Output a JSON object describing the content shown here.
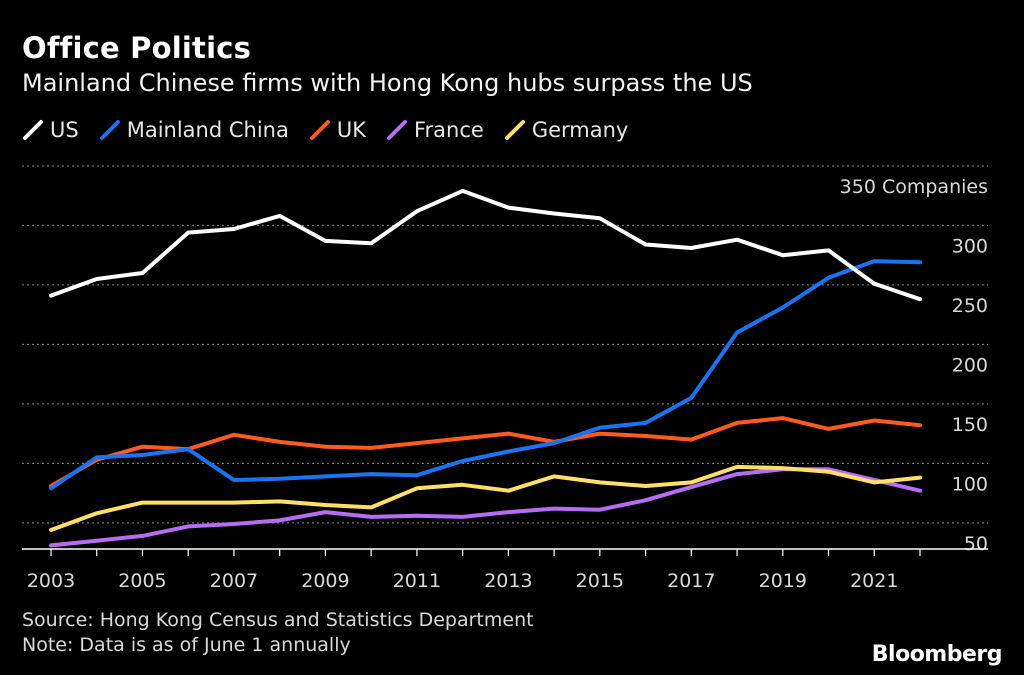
{
  "header": {
    "title": "Office Politics",
    "subtitle": "Mainland Chinese firms with Hong Kong hubs surpass the US"
  },
  "footer": {
    "source": "Source: Hong Kong Census and Statistics Department",
    "note": "Note: Data is as of June 1 annually",
    "brand": "Bloomberg"
  },
  "chart_data": {
    "type": "line",
    "title": "Office Politics",
    "subtitle": "Mainland Chinese firms with Hong Kong hubs surpass the US",
    "x": [
      2003,
      2004,
      2005,
      2006,
      2007,
      2008,
      2009,
      2010,
      2011,
      2012,
      2013,
      2014,
      2015,
      2016,
      2017,
      2018,
      2019,
      2020,
      2021,
      2022
    ],
    "x_tick_labels": [
      "2003",
      "2005",
      "2007",
      "2009",
      "2011",
      "2013",
      "2015",
      "2017",
      "2019",
      "2021"
    ],
    "y_ticks": [
      50,
      100,
      150,
      200,
      250,
      300,
      350
    ],
    "y_tick_labels": [
      "50",
      "100",
      "150",
      "200",
      "250",
      "300",
      "350 Companies"
    ],
    "ylim": [
      28,
      355
    ],
    "grid": true,
    "legend_position": "top-left",
    "series": [
      {
        "name": "US",
        "color": "#ffffff",
        "values": [
          241,
          255,
          260,
          294,
          297,
          308,
          287,
          285,
          312,
          329,
          315,
          310,
          306,
          284,
          281,
          288,
          275,
          279,
          251,
          238
        ]
      },
      {
        "name": "Mainland China",
        "color": "#1a74f2",
        "values": [
          79,
          105,
          107,
          112,
          86,
          87,
          89,
          91,
          90,
          102,
          110,
          117,
          130,
          134,
          155,
          210,
          231,
          256,
          270,
          269
        ]
      },
      {
        "name": "UK",
        "color": "#ff5a1f",
        "values": [
          81,
          103,
          114,
          112,
          124,
          118,
          114,
          113,
          117,
          121,
          125,
          118,
          125,
          123,
          120,
          134,
          138,
          129,
          136,
          132
        ]
      },
      {
        "name": "France",
        "color": "#b66df2",
        "values": [
          31,
          35,
          39,
          47,
          49,
          52,
          59,
          55,
          56,
          55,
          59,
          62,
          61,
          69,
          80,
          91,
          95,
          95,
          86,
          77
        ]
      },
      {
        "name": "Germany",
        "color": "#ffe066",
        "values": [
          44,
          58,
          67,
          67,
          67,
          68,
          65,
          63,
          79,
          82,
          77,
          89,
          84,
          81,
          84,
          97,
          96,
          93,
          84,
          88
        ]
      }
    ]
  }
}
